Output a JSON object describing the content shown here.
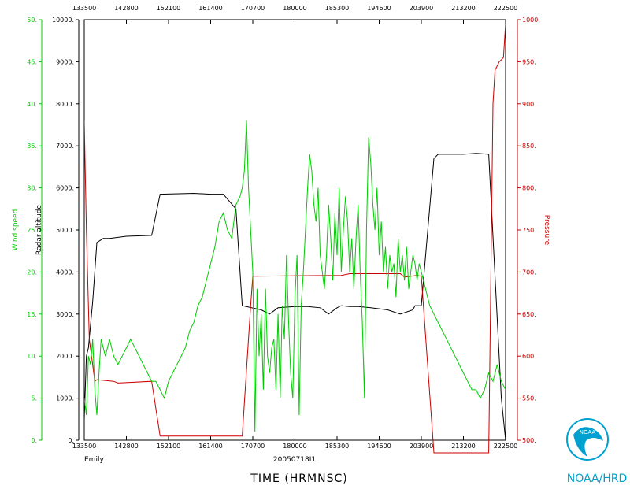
{
  "chart_data": {
    "type": "line",
    "x_ticks": [
      "133500",
      "142800",
      "152100",
      "161400",
      "170700",
      "180000",
      "185300",
      "194600",
      "203900",
      "213200",
      "222500"
    ],
    "xlabel": "TIME (HRMNSC)",
    "flight_label": "20050718I1",
    "storm_name": "Emily",
    "axes": {
      "wind_speed": {
        "label": "Wind speed",
        "range": [
          0,
          50
        ],
        "ticks": [
          "0.",
          "5.",
          "10.",
          "15.",
          "20.",
          "25.",
          "30.",
          "35.",
          "40.",
          "45.",
          "50."
        ],
        "color": "#00cc00"
      },
      "radar_altitude": {
        "label": "Radar altitude",
        "range": [
          0,
          10000
        ],
        "ticks": [
          "0.",
          "1000.",
          "2000.",
          "3000.",
          "4000.",
          "5000.",
          "6000.",
          "7000.",
          "8000.",
          "9000.",
          "10000."
        ],
        "color": "#000000"
      },
      "pressure": {
        "label": "Pressure",
        "range": [
          500,
          1000
        ],
        "ticks": [
          "500.",
          "550.",
          "600.",
          "650.",
          "700.",
          "750.",
          "800.",
          "850.",
          "900.",
          "950.",
          "1000."
        ],
        "color": "#cc0000"
      }
    },
    "series": [
      {
        "name": "Radar altitude",
        "axis": "radar_altitude",
        "color": "#000000",
        "x": [
          0,
          0.05,
          0.1,
          0.2,
          0.3,
          0.45,
          0.6,
          1.0,
          1.6,
          1.8,
          2.6,
          3.0,
          3.3,
          3.6,
          3.75,
          4.2,
          4.4,
          4.6,
          5.0,
          5.3,
          5.6,
          5.8,
          6.0,
          6.1,
          6.3,
          6.5,
          6.8,
          7.2,
          7.5,
          7.8,
          7.85,
          8.0,
          8.3,
          8.4,
          8.6,
          9.0,
          9.3,
          9.6,
          9.9,
          10.0
        ],
        "y": [
          500,
          2000,
          2200,
          3300,
          4700,
          4800,
          4800,
          4850,
          4870,
          5850,
          5870,
          5850,
          5850,
          5500,
          3200,
          3100,
          3000,
          3150,
          3180,
          3180,
          3150,
          3000,
          3150,
          3200,
          3180,
          3180,
          3150,
          3100,
          3000,
          3100,
          3200,
          3200,
          6700,
          6800,
          6800,
          6800,
          6820,
          6800,
          1000,
          0
        ]
      },
      {
        "name": "Pressure",
        "axis": "pressure",
        "color": "#cc0000",
        "x": [
          0,
          0.05,
          0.12,
          0.25,
          0.3,
          0.7,
          0.8,
          1.6,
          1.8,
          2.7,
          3.1,
          3.75,
          3.95,
          4.0,
          6.1,
          6.3,
          7.5,
          7.6,
          7.9,
          8.0,
          8.3,
          9.5,
          9.6,
          9.7,
          9.75,
          9.85,
          9.95,
          10.0
        ],
        "y": [
          880,
          750,
          620,
          570,
          572,
          570,
          568,
          570,
          505,
          505,
          505,
          505,
          660,
          695,
          696,
          698,
          698,
          694,
          696,
          695,
          485,
          485,
          485,
          900,
          940,
          950,
          955,
          995
        ]
      },
      {
        "name": "Wind speed",
        "axis": "wind_speed",
        "color": "#00cc00",
        "x": [
          0,
          0.05,
          0.1,
          0.15,
          0.2,
          0.25,
          0.3,
          0.35,
          0.4,
          0.45,
          0.5,
          0.6,
          0.7,
          0.8,
          0.9,
          1.0,
          1.1,
          1.2,
          1.3,
          1.4,
          1.5,
          1.6,
          1.7,
          1.8,
          1.9,
          2.0,
          2.1,
          2.2,
          2.3,
          2.4,
          2.5,
          2.6,
          2.7,
          2.8,
          2.9,
          3.0,
          3.1,
          3.2,
          3.3,
          3.4,
          3.5,
          3.6,
          3.7,
          3.75,
          3.8,
          3.85,
          3.9,
          3.95,
          4.0,
          4.05,
          4.1,
          4.15,
          4.2,
          4.25,
          4.3,
          4.35,
          4.4,
          4.45,
          4.5,
          4.55,
          4.6,
          4.65,
          4.7,
          4.75,
          4.8,
          4.85,
          4.9,
          4.95,
          5.0,
          5.05,
          5.1,
          5.15,
          5.2,
          5.25,
          5.3,
          5.35,
          5.4,
          5.45,
          5.5,
          5.55,
          5.6,
          5.65,
          5.7,
          5.75,
          5.8,
          5.85,
          5.9,
          5.95,
          6.0,
          6.05,
          6.1,
          6.15,
          6.2,
          6.25,
          6.3,
          6.35,
          6.4,
          6.45,
          6.5,
          6.55,
          6.6,
          6.65,
          6.7,
          6.75,
          6.8,
          6.85,
          6.9,
          6.95,
          7.0,
          7.05,
          7.1,
          7.15,
          7.2,
          7.25,
          7.3,
          7.35,
          7.4,
          7.45,
          7.5,
          7.55,
          7.6,
          7.65,
          7.7,
          7.75,
          7.8,
          7.85,
          7.9,
          7.95,
          8.0,
          8.05,
          8.1,
          8.15,
          8.2,
          8.3,
          8.4,
          8.5,
          8.6,
          8.7,
          8.8,
          8.9,
          9.0,
          9.1,
          9.2,
          9.3,
          9.4,
          9.5,
          9.6,
          9.7,
          9.8,
          9.9,
          10.0
        ],
        "y": [
          5,
          3,
          10,
          9,
          12,
          6,
          3,
          8,
          12,
          11,
          10,
          12,
          10,
          9,
          10,
          11,
          12,
          11,
          10,
          9,
          8,
          7,
          7,
          6,
          5,
          7,
          8,
          9,
          10,
          11,
          13,
          14,
          16,
          17,
          19,
          21,
          23,
          26,
          27,
          25,
          24,
          28,
          29,
          30,
          32,
          38,
          30,
          25,
          20,
          1,
          18,
          10,
          15,
          6,
          18,
          10,
          8,
          11,
          12,
          6,
          15,
          5,
          16,
          12,
          22,
          14,
          8,
          5,
          17,
          22,
          3,
          16,
          20,
          25,
          30,
          34,
          32,
          28,
          26,
          30,
          22,
          20,
          18,
          22,
          28,
          24,
          19,
          27,
          22,
          30,
          20,
          25,
          29,
          26,
          20,
          24,
          18,
          24,
          28,
          20,
          14,
          5,
          25,
          36,
          33,
          28,
          25,
          30,
          22,
          26,
          20,
          23,
          18,
          22,
          20,
          21,
          17,
          24,
          20,
          22,
          19,
          23,
          18,
          20,
          22,
          21,
          19,
          21,
          20,
          19,
          18,
          17,
          16,
          15,
          14,
          13,
          12,
          11,
          10,
          9,
          8,
          7,
          6,
          6,
          5,
          6,
          8,
          7,
          9,
          7,
          6
        ]
      }
    ]
  },
  "logo_text": "NOAA",
  "branding": "NOAA/HRD"
}
